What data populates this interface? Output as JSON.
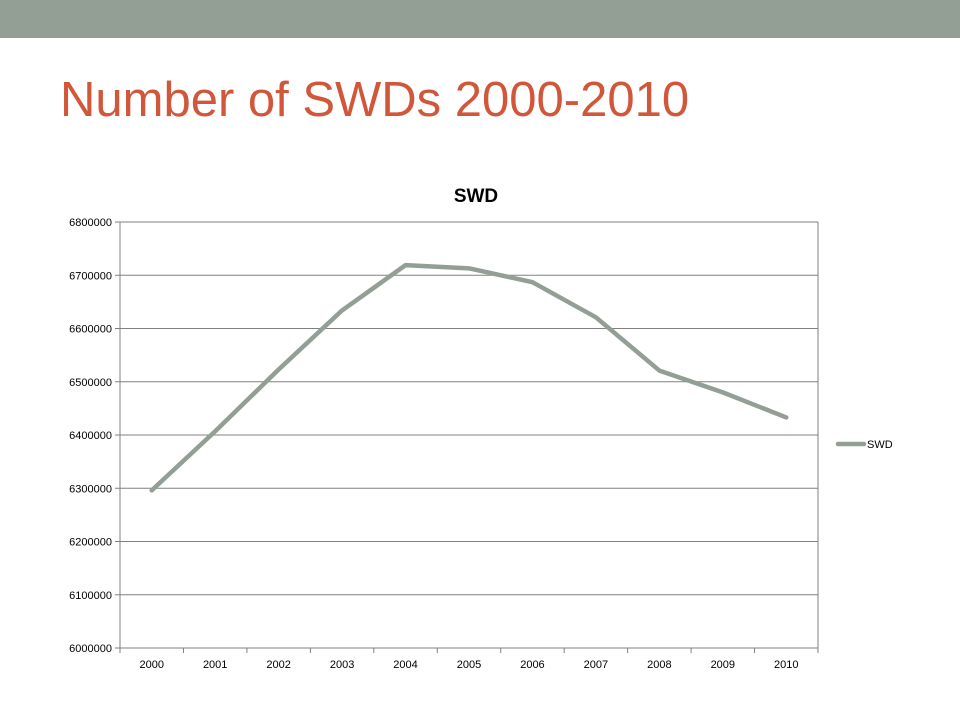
{
  "slide": {
    "title": "Number of SWDs 2000-2010",
    "accent_color": "#d0573a",
    "bar_color": "#939f95"
  },
  "chart_data": {
    "type": "line",
    "title": "SWD",
    "xlabel": "",
    "ylabel": "",
    "categories": [
      "2000",
      "2001",
      "2002",
      "2003",
      "2004",
      "2005",
      "2006",
      "2007",
      "2008",
      "2009",
      "2010"
    ],
    "series": [
      {
        "name": "SWD",
        "color": "#939f95",
        "values": [
          6296000,
          6407000,
          6523000,
          6634000,
          6719000,
          6713000,
          6687000,
          6621000,
          6521000,
          6480000,
          6433000
        ]
      }
    ],
    "ylim": [
      6000000,
      6800000
    ],
    "yticks": [
      6000000,
      6100000,
      6200000,
      6300000,
      6400000,
      6500000,
      6600000,
      6700000,
      6800000
    ],
    "grid": true,
    "legend": "right"
  }
}
